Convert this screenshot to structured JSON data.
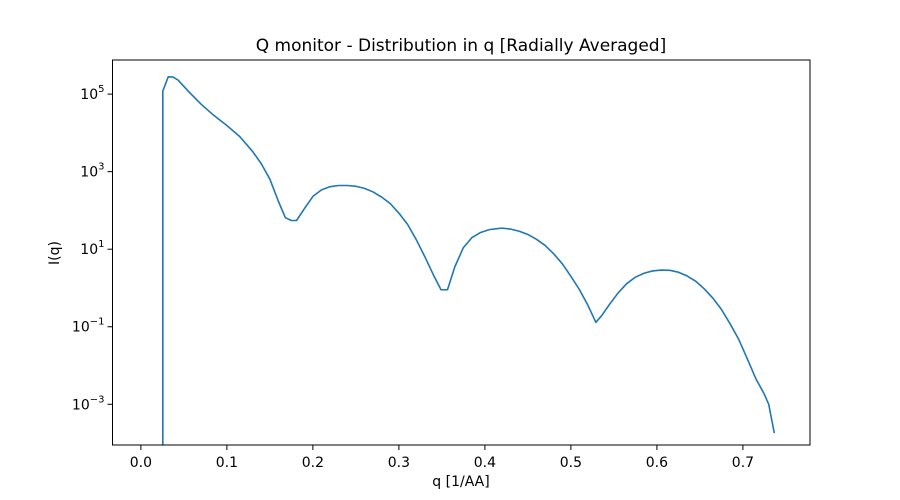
{
  "chart_data": {
    "type": "line",
    "title": "Q monitor - Distribution in q [Radially Averaged]",
    "xlabel": "q [1/AA]",
    "ylabel": "I(q)",
    "xscale": "linear",
    "yscale": "log",
    "xlim": [
      -0.033,
      0.778
    ],
    "ylim_log10": [
      -4.05,
      5.88
    ],
    "grid": false,
    "legend": "none",
    "x_ticks": [
      {
        "value": 0.0,
        "label": "0.0"
      },
      {
        "value": 0.1,
        "label": "0.1"
      },
      {
        "value": 0.2,
        "label": "0.2"
      },
      {
        "value": 0.3,
        "label": "0.3"
      },
      {
        "value": 0.4,
        "label": "0.4"
      },
      {
        "value": 0.5,
        "label": "0.5"
      },
      {
        "value": 0.6,
        "label": "0.6"
      },
      {
        "value": 0.7,
        "label": "0.7"
      }
    ],
    "y_ticks": [
      {
        "exp": 5,
        "base": "10",
        "sup": "5"
      },
      {
        "exp": 3,
        "base": "10",
        "sup": "3"
      },
      {
        "exp": 1,
        "base": "10",
        "sup": "1"
      },
      {
        "exp": -1,
        "base": "10",
        "sup": "−1"
      },
      {
        "exp": -3,
        "base": "10",
        "sup": "−3"
      }
    ],
    "series": [
      {
        "color": "#1f77b4",
        "x": [
          0.0255,
          0.0255,
          0.0255,
          0.0318,
          0.0374,
          0.0432,
          0.055,
          0.07,
          0.085,
          0.1,
          0.115,
          0.13,
          0.14,
          0.15,
          0.16,
          0.168,
          0.175,
          0.181,
          0.19,
          0.2,
          0.21,
          0.22,
          0.23,
          0.24,
          0.25,
          0.26,
          0.27,
          0.28,
          0.29,
          0.3,
          0.31,
          0.32,
          0.33,
          0.34,
          0.349,
          0.3565,
          0.365,
          0.375,
          0.385,
          0.395,
          0.405,
          0.415,
          0.42,
          0.43,
          0.44,
          0.45,
          0.46,
          0.47,
          0.48,
          0.49,
          0.5,
          0.51,
          0.52,
          0.529,
          0.5355,
          0.545,
          0.555,
          0.565,
          0.575,
          0.585,
          0.595,
          0.605,
          0.615,
          0.625,
          0.635,
          0.645,
          0.655,
          0.665,
          0.675,
          0.685,
          0.695,
          0.705,
          0.715,
          0.725,
          0.73,
          0.7365
        ],
        "y": [
          1e-06,
          0.000158,
          120000,
          280000,
          275000,
          230000,
          120000,
          55000,
          28000,
          15500,
          8000,
          3300,
          1600,
          640,
          170,
          65,
          55,
          55,
          110,
          230,
          340,
          410,
          440,
          440,
          420,
          370,
          300,
          220,
          150,
          85,
          44,
          18,
          6.5,
          2.2,
          0.9,
          0.9,
          3.5,
          11,
          20,
          27,
          32,
          34,
          35,
          33,
          29,
          24,
          18,
          12.5,
          7.6,
          4.2,
          2.0,
          0.9,
          0.35,
          0.13,
          0.19,
          0.38,
          0.75,
          1.3,
          1.9,
          2.4,
          2.75,
          2.9,
          2.85,
          2.55,
          2.05,
          1.5,
          0.95,
          0.55,
          0.28,
          0.12,
          0.048,
          0.015,
          0.0046,
          0.0018,
          0.001,
          0.00018
        ]
      }
    ]
  }
}
